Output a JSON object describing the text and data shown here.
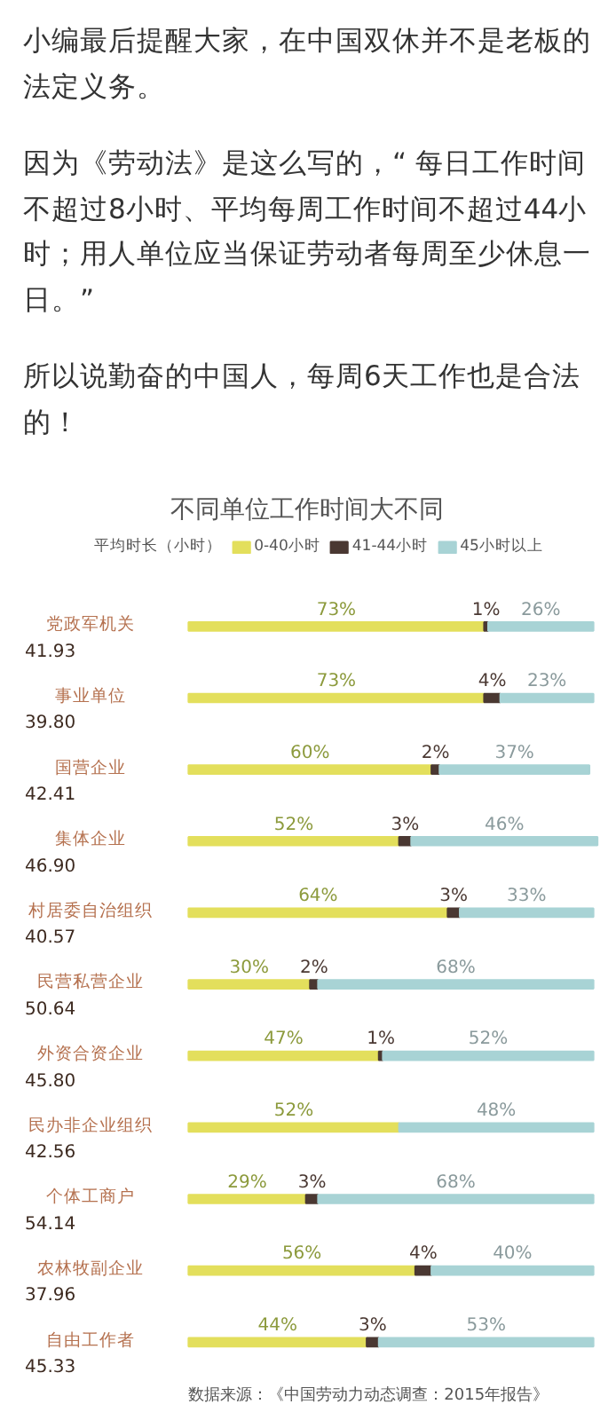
{
  "chart_data": {
    "type": "bar",
    "orientation": "horizontal",
    "stacked": true,
    "title": "不同单位工作时间大不同",
    "legend": "top",
    "categories": [
      "党政军机关",
      "事业单位",
      "国营企业",
      "集体企业",
      "村居委自治组织",
      "民营私营企业",
      "外资合资企业",
      "民办非企业组织",
      "个体工商户",
      "农林牧副企业",
      "自由工作者"
    ],
    "series": [
      {
        "name": "0-40小时",
        "color": "#e3df5c",
        "values": [
          73,
          73,
          60,
          52,
          64,
          30,
          47,
          52,
          29,
          56,
          44
        ],
        "value_labels": [
          "73%",
          "73%",
          "60%",
          "52%",
          "64%",
          "30%",
          "47%",
          "52%",
          "29%",
          "56%",
          "44%"
        ]
      },
      {
        "name": "41-44小时",
        "color": "#4a3832",
        "values": [
          1,
          4,
          2,
          3,
          3,
          2,
          1,
          null,
          3,
          4,
          3
        ],
        "value_labels": [
          "1%",
          "4%",
          "2%",
          "3%",
          "3%",
          "2%",
          "1%",
          null,
          "3%",
          "4%",
          "3%"
        ]
      },
      {
        "name": "45小时以上",
        "color": "#a8d3d5",
        "values": [
          26,
          23,
          37,
          46,
          33,
          68,
          52,
          48,
          68,
          40,
          53
        ],
        "value_labels": [
          "26%",
          "23%",
          "37%",
          "46%",
          "33%",
          "68%",
          "52%",
          "48%",
          "68%",
          "40%",
          "53%"
        ]
      }
    ],
    "annotations": [
      "小编最后提醒大家，在中国双休并不是老板的法定义务。",
      "因为《劳动法》是这么写的，“ 每日工作时间不超过8小时、平均每周工作时间不超过44小时；用人单位应当保证劳动者每周至少休息一日。”",
      "所以说勤奋的中国人，每周6天工作也是合法的！",
      "平均时长（小时）",
      "数据来源：《中国劳动力动态调查：2015年报告》",
      "41.93",
      "39.80",
      "42.41",
      "46.90",
      "40.57",
      "50.64",
      "45.80",
      "42.56",
      "54.14",
      "37.96",
      "45.33"
    ]
  }
}
